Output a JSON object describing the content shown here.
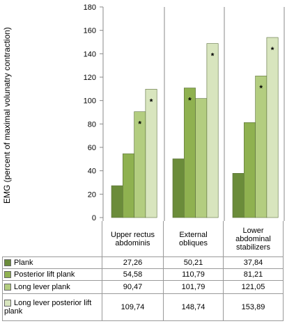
{
  "chart_data": {
    "type": "bar",
    "y_label": "EMG (percent of maximal volunatry contraction)",
    "categories": [
      "Upper rectus abdominis",
      "External obliques",
      "Lower abdominal stabilizers"
    ],
    "series": [
      {
        "name": "Plank",
        "color": "#6b8c3a",
        "values": [
          27.26,
          50.21,
          37.84
        ],
        "value_labels": [
          "27,26",
          "50,21",
          "37,84"
        ],
        "annotations": [
          null,
          null,
          null
        ]
      },
      {
        "name": "Posterior lift plank",
        "color": "#8fb150",
        "values": [
          54.58,
          110.79,
          81.21
        ],
        "value_labels": [
          "54,58",
          "110,79",
          "81,21"
        ],
        "annotations": [
          null,
          "*",
          null
        ]
      },
      {
        "name": "Long lever plank",
        "color": "#b3cd80",
        "values": [
          90.47,
          101.79,
          121.05
        ],
        "value_labels": [
          "90,47",
          "101,79",
          "121,05"
        ],
        "annotations": [
          "*",
          null,
          "*"
        ]
      },
      {
        "name": "Long lever posterior lift plank",
        "color": "#d8e5be",
        "values": [
          109.74,
          148.74,
          153.89
        ],
        "value_labels": [
          "109,74",
          "148,74",
          "153,89"
        ],
        "annotations": [
          "*",
          "*",
          "*"
        ]
      }
    ],
    "ylim": [
      0,
      180
    ],
    "yticks": [
      0,
      20,
      40,
      60,
      80,
      100,
      120,
      140,
      160,
      180
    ],
    "grid": false
  }
}
